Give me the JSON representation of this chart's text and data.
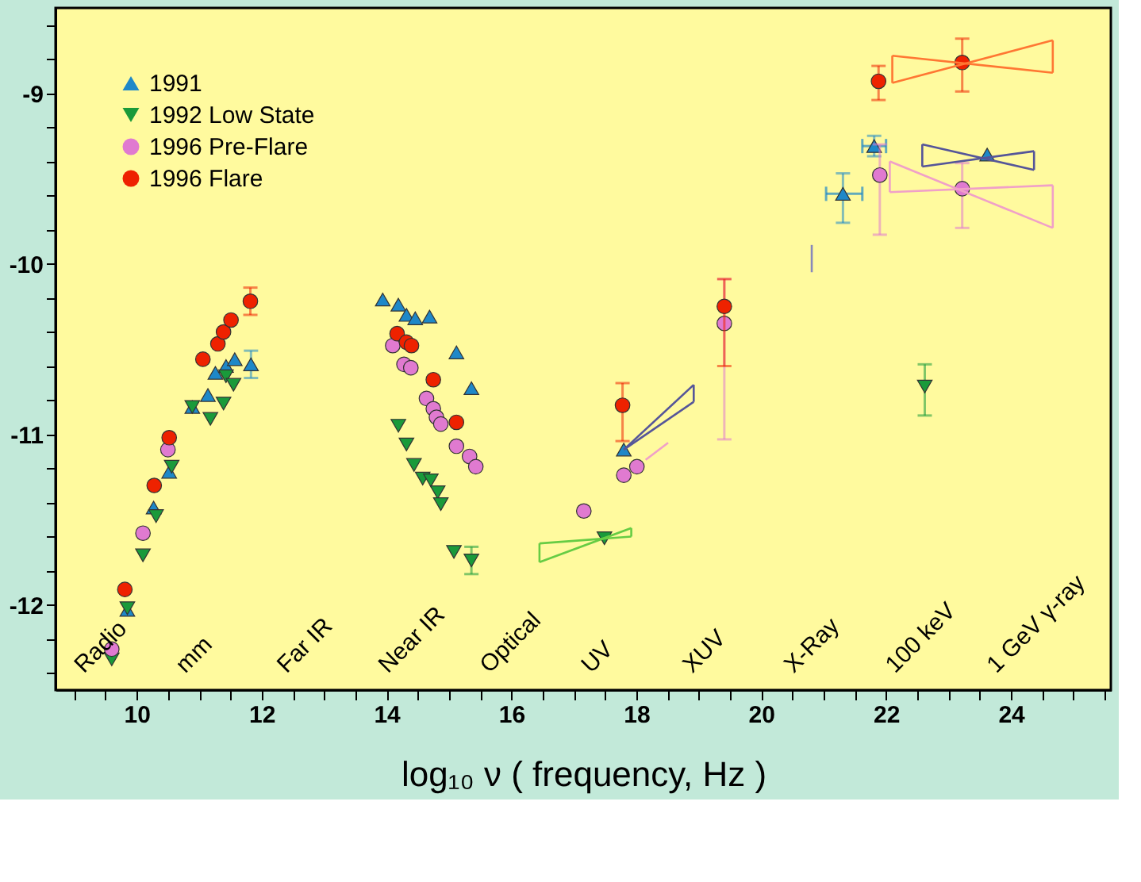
{
  "chart_data": {
    "type": "scatter",
    "xlabel": "log₁₀ ν   ( frequency, Hz )",
    "xlim": [
      8.7,
      25.6
    ],
    "ylim": [
      -12.5,
      -8.5
    ],
    "xticks": [
      {
        "value": 9,
        "label": null
      },
      {
        "value": 9.5,
        "label": null
      },
      10,
      {
        "value": 10.5,
        "label": null
      },
      {
        "value": 11,
        "label": null
      },
      {
        "value": 11.5,
        "label": null
      },
      12,
      {
        "value": 12.5,
        "label": null
      },
      {
        "value": 13,
        "label": null
      },
      {
        "value": 13.5,
        "label": null
      },
      14,
      {
        "value": 14.5,
        "label": null
      },
      {
        "value": 15,
        "label": null
      },
      {
        "value": 15.5,
        "label": null
      },
      16,
      {
        "value": 16.5,
        "label": null
      },
      {
        "value": 17,
        "label": null
      },
      {
        "value": 17.5,
        "label": null
      },
      18,
      {
        "value": 18.5,
        "label": null
      },
      {
        "value": 19,
        "label": null
      },
      {
        "value": 19.5,
        "label": null
      },
      20,
      {
        "value": 20.5,
        "label": null
      },
      {
        "value": 21,
        "label": null
      },
      {
        "value": 21.5,
        "label": null
      },
      22,
      {
        "value": 22.5,
        "label": null
      },
      {
        "value": 23,
        "label": null
      },
      {
        "value": 23.5,
        "label": null
      },
      24,
      {
        "value": 24.5,
        "label": null
      },
      {
        "value": 25,
        "label": null
      },
      {
        "value": 25.5,
        "label": null
      }
    ],
    "yticks": [
      {
        "value": -8.6,
        "label": null
      },
      {
        "value": -8.8,
        "label": null
      },
      -9,
      {
        "value": -9.2,
        "label": null
      },
      {
        "value": -9.4,
        "label": null
      },
      {
        "value": -9.6,
        "label": null
      },
      {
        "value": -9.8,
        "label": null
      },
      -10,
      {
        "value": -10.2,
        "label": null
      },
      {
        "value": -10.4,
        "label": null
      },
      {
        "value": -10.6,
        "label": null
      },
      {
        "value": -10.8,
        "label": null
      },
      -11,
      {
        "value": -11.2,
        "label": null
      },
      {
        "value": -11.4,
        "label": null
      },
      {
        "value": -11.6,
        "label": null
      },
      {
        "value": -11.8,
        "label": null
      },
      -12,
      {
        "value": -12.2,
        "label": null
      },
      {
        "value": -12.4,
        "label": null
      }
    ],
    "grid": false,
    "legend": "top left",
    "series": [
      {
        "name": "1991",
        "marker": "triangle",
        "color": "#1e88c8",
        "x": [
          9.85,
          10.27,
          10.52,
          10.89,
          11.14,
          11.26,
          11.43,
          11.57,
          11.83,
          13.94,
          14.19,
          14.32,
          14.46,
          14.69,
          15.12,
          15.36,
          17.8,
          21.31,
          21.81,
          23.62
        ],
        "values": [
          -12.03,
          -11.43,
          -11.22,
          -10.84,
          -10.77,
          -10.64,
          -10.6,
          -10.56,
          -10.59,
          -10.21,
          -10.24,
          -10.3,
          -10.32,
          -10.31,
          -10.52,
          -10.73,
          -11.09,
          -9.59,
          -9.31,
          -9.36
        ],
        "errors": [
          null,
          null,
          null,
          null,
          null,
          null,
          null,
          null,
          [
            -10.67,
            -10.51
          ],
          null,
          null,
          null,
          null,
          null,
          null,
          null,
          null,
          [
            -9.76,
            -9.47
          ],
          [
            -9.37,
            -9.25
          ],
          null
        ],
        "xerrors": [
          null,
          null,
          null,
          null,
          null,
          null,
          null,
          null,
          null,
          null,
          null,
          null,
          null,
          null,
          null,
          null,
          null,
          [
            21.04,
            21.62
          ],
          [
            21.62,
            22.0
          ],
          null
        ]
      },
      {
        "name": "1992 Low State",
        "marker": "triangle-down",
        "color": "#1a9a3a",
        "x": [
          9.6,
          9.85,
          10.1,
          10.31,
          10.56,
          10.89,
          11.18,
          11.39,
          11.43,
          11.55,
          14.19,
          14.32,
          14.44,
          14.58,
          14.71,
          14.82,
          14.87,
          15.08,
          15.36,
          17.49,
          22.62
        ],
        "values": [
          -12.32,
          -12.02,
          -11.71,
          -11.48,
          -11.19,
          -10.84,
          -10.91,
          -10.82,
          -10.66,
          -10.71,
          -10.95,
          -11.06,
          -11.18,
          -11.26,
          -11.27,
          -11.34,
          -11.41,
          -11.69,
          -11.74,
          -11.61,
          -10.72
        ],
        "errors": [
          null,
          null,
          null,
          null,
          null,
          null,
          null,
          null,
          null,
          null,
          null,
          null,
          null,
          null,
          null,
          null,
          null,
          null,
          [
            -11.82,
            -11.66
          ],
          null,
          [
            -10.89,
            -10.59
          ]
        ]
      },
      {
        "name": "1996 Pre-Flare",
        "marker": "circle",
        "color": "#e07ad0",
        "x": [
          9.6,
          10.1,
          10.5,
          14.1,
          14.28,
          14.39,
          14.64,
          14.75,
          14.8,
          14.87,
          15.12,
          15.33,
          15.43,
          17.16,
          17.8,
          18.01,
          19.41,
          21.9,
          23.22
        ],
        "values": [
          -12.26,
          -11.58,
          -11.09,
          -10.48,
          -10.59,
          -10.61,
          -10.79,
          -10.85,
          -10.9,
          -10.94,
          -11.07,
          -11.13,
          -11.19,
          -11.45,
          -11.24,
          -11.19,
          -10.35,
          -9.48,
          -9.56
        ],
        "errors": [
          null,
          null,
          null,
          null,
          null,
          null,
          null,
          null,
          null,
          null,
          null,
          null,
          null,
          null,
          null,
          null,
          [
            -11.03,
            -10.09
          ],
          [
            -9.83,
            -9.3
          ],
          [
            -9.79,
            -9.41
          ]
        ]
      },
      {
        "name": "1996 Flare",
        "marker": "circle",
        "color": "#ee2200",
        "x": [
          9.81,
          10.28,
          10.52,
          11.06,
          11.3,
          11.39,
          11.51,
          11.82,
          14.17,
          14.32,
          14.4,
          14.75,
          15.12,
          17.78,
          19.41,
          21.88,
          23.22
        ],
        "values": [
          -11.91,
          -11.3,
          -11.02,
          -10.56,
          -10.47,
          -10.4,
          -10.33,
          -10.22,
          -10.41,
          -10.46,
          -10.48,
          -10.68,
          -10.93,
          -10.83,
          -10.25,
          -8.93,
          -8.82
        ],
        "errors": [
          null,
          null,
          null,
          null,
          null,
          null,
          null,
          [
            -10.3,
            -10.14
          ],
          null,
          null,
          null,
          null,
          null,
          [
            -11.04,
            -10.7
          ],
          [
            -10.6,
            -10.09
          ],
          [
            -9.04,
            -8.84
          ],
          [
            -8.99,
            -8.68
          ]
        ]
      },
      {
        "type": "line",
        "color": "#ff7733",
        "x": [
          22.1,
          24.67
        ],
        "values": [
          -8.78,
          -8.88
        ],
        "errors": [
          [
            -8.94,
            -8.78
          ],
          [
            -8.88,
            -8.69
          ]
        ]
      },
      {
        "type": "line",
        "color": "#ff7733",
        "x": [
          22.1,
          24.67
        ],
        "values": [
          -8.94,
          -8.69
        ]
      },
      {
        "type": "line",
        "color": "#555599",
        "x": [
          22.58,
          24.37
        ],
        "values": [
          -9.3,
          -9.45
        ],
        "errors": [
          [
            -9.43,
            -9.3
          ],
          [
            -9.45,
            -9.34
          ]
        ]
      },
      {
        "type": "line",
        "color": "#555599",
        "x": [
          22.58,
          24.37
        ],
        "values": [
          -9.43,
          -9.34
        ]
      },
      {
        "type": "line",
        "color": "#f0a0c8",
        "x": [
          22.06,
          24.67
        ],
        "values": [
          -9.4,
          -9.79
        ],
        "errors": [
          [
            -9.58,
            -9.4
          ],
          [
            -9.79,
            -9.54
          ]
        ]
      },
      {
        "type": "line",
        "color": "#f0a0c8",
        "x": [
          22.06,
          24.67
        ],
        "values": [
          -9.58,
          -9.54
        ]
      },
      {
        "type": "line",
        "color": "#66cc44",
        "x": [
          16.45,
          17.92
        ],
        "values": [
          -11.64,
          -11.6
        ],
        "errors": [
          [
            -11.75,
            -11.64
          ],
          [
            -11.6,
            -11.55
          ]
        ]
      },
      {
        "type": "line",
        "color": "#66cc44",
        "x": [
          16.45,
          17.92
        ],
        "values": [
          -11.75,
          -11.55
        ]
      },
      {
        "type": "line",
        "color": "#555599",
        "x": [
          17.8,
          18.92
        ],
        "values": [
          -11.09,
          -10.71
        ],
        "errors": [
          null,
          [
            -10.81,
            -10.71
          ]
        ]
      },
      {
        "type": "line",
        "color": "#555599",
        "x": [
          17.8,
          18.92
        ],
        "values": [
          -11.09,
          -10.81
        ]
      },
      {
        "type": "line",
        "color": "#f0a0c8",
        "x": [
          18.15,
          18.51
        ],
        "values": [
          -11.15,
          -11.05
        ]
      },
      {
        "type": "line",
        "color": "#8888bb",
        "x": [
          20.81,
          20.81
        ],
        "values": [
          -9.89,
          -10.05
        ]
      }
    ],
    "annotations": [
      "Radio",
      "mm",
      "Far IR",
      "Near IR",
      "Optical",
      "UV",
      "XUV",
      "X-Ray",
      "100 keV",
      "1 GeV γ-ray"
    ]
  }
}
